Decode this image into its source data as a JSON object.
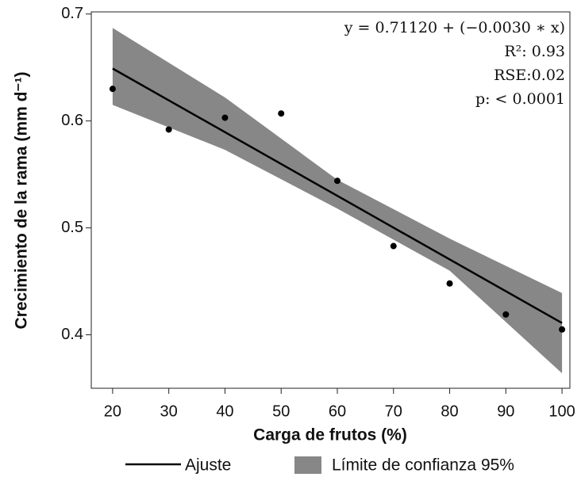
{
  "chart_data": {
    "type": "scatter",
    "x_label": "Carga de frutos (%)",
    "y_label": "Crecimiento de la rama (mm d⁻¹)",
    "annotations": [
      "y = 0.71120 + (−0.0030 ∗ x)",
      "R²: 0.93",
      "RSE:0.02",
      "p: < 0.0001"
    ],
    "x": [
      20,
      30,
      40,
      50,
      60,
      70,
      80,
      90,
      100
    ],
    "values": [
      0.63,
      0.592,
      0.603,
      0.607,
      0.544,
      0.483,
      0.448,
      0.419,
      0.405
    ],
    "color": "#000000",
    "fit": {
      "name": "Ajuste",
      "color": "#000000",
      "x": [
        20,
        100
      ],
      "values": [
        0.649,
        0.411
      ]
    },
    "band": {
      "name": "Límite de confianza 95%",
      "color": "#878787",
      "x": [
        20,
        40,
        60,
        80,
        100
      ],
      "upper": [
        0.687,
        0.622,
        0.545,
        0.49,
        0.439
      ],
      "lower": [
        0.615,
        0.573,
        0.518,
        0.46,
        0.364
      ]
    },
    "xlim": [
      16.2,
      101.4
    ],
    "ylim": [
      0.35,
      0.702
    ],
    "xticks": [
      20,
      30,
      40,
      50,
      60,
      70,
      80,
      90,
      100
    ],
    "yticks": [
      0.4,
      0.5,
      0.6,
      0.7
    ]
  }
}
